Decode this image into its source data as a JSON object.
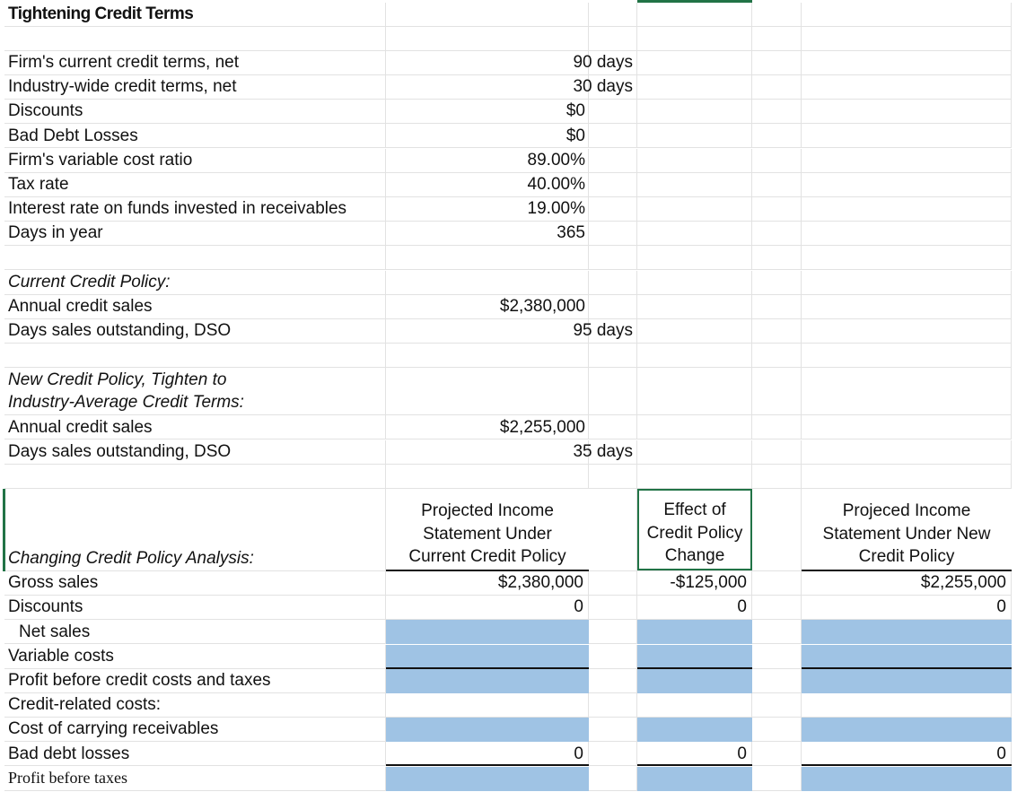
{
  "title": "Tightening Credit Terms",
  "inputs": [
    {
      "label": "Firm's current credit terms, net",
      "value": "90 days"
    },
    {
      "label": "Industry-wide credit terms, net",
      "value": "30 days"
    },
    {
      "label": "Discounts",
      "value": "$0"
    },
    {
      "label": "Bad Debt Losses",
      "value": "$0"
    },
    {
      "label": "Firm's variable cost ratio",
      "value": "89.00%"
    },
    {
      "label": "Tax rate",
      "value": "40.00%"
    },
    {
      "label": "Interest rate on funds invested in receivables",
      "value": "19.00%"
    },
    {
      "label": "Days in year",
      "value": "365"
    }
  ],
  "current_policy": {
    "heading": "Current Credit Policy:",
    "rows": [
      {
        "label": "Annual credit sales",
        "value": "$2,380,000"
      },
      {
        "label": "Days sales outstanding, DSO",
        "value": "95 days"
      }
    ]
  },
  "new_policy": {
    "heading": "New Credit Policy, Tighten to Industry-Average Credit Terms:",
    "rows": [
      {
        "label": "Annual credit sales",
        "value": "$2,255,000"
      },
      {
        "label": "Days sales outstanding, DSO",
        "value": "35 days"
      }
    ]
  },
  "analysis": {
    "heading": "Changing Credit Policy Analysis:",
    "columns": [
      "Projected Income Statement Under Current Credit Policy",
      "Effect of Credit Policy Change",
      "Projeced Income Statement Under New Credit Policy"
    ],
    "rows": [
      {
        "label": "Gross sales",
        "cells": [
          "$2,380,000",
          "-$125,000",
          "$2,255,000"
        ]
      },
      {
        "label": "Discounts",
        "cells": [
          "0",
          "0",
          "0"
        ]
      },
      {
        "label": "Net sales",
        "cells": [
          null,
          null,
          null
        ]
      },
      {
        "label": "Variable costs",
        "cells": [
          null,
          null,
          null
        ]
      },
      {
        "label": "Profit before credit costs and taxes",
        "cells": [
          null,
          null,
          null
        ]
      },
      {
        "label": "Credit-related costs:",
        "cells": [
          null,
          null,
          null
        ]
      },
      {
        "label": "Cost of carrying receivables",
        "cells": [
          null,
          null,
          null
        ]
      },
      {
        "label": "Bad debt losses",
        "cells": [
          "0",
          "0",
          "0"
        ]
      },
      {
        "label": "Profit before taxes",
        "cells": [
          null,
          null,
          null
        ]
      }
    ]
  }
}
